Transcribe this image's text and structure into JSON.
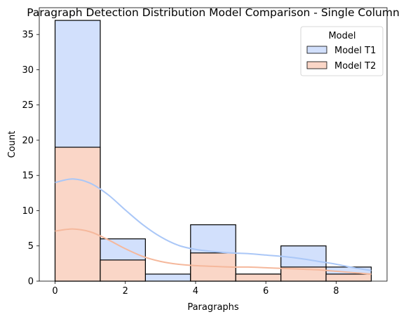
{
  "chart_data": {
    "type": "histogram",
    "title": "Paragraph Detection Distribution Model Comparison - Single Column",
    "xlabel": "Paragraphs",
    "ylabel": "Count",
    "xlim": [
      -0.45,
      9.45
    ],
    "ylim": [
      0,
      38.8
    ],
    "xticks": [
      0,
      2,
      4,
      6,
      8
    ],
    "yticks": [
      0,
      5,
      10,
      15,
      20,
      25,
      30,
      35
    ],
    "bin_edges": [
      0,
      1.286,
      2.571,
      3.857,
      5.143,
      6.429,
      7.714,
      9
    ],
    "grid": false,
    "legend": {
      "title": "Model",
      "position": "top-right"
    },
    "series": [
      {
        "name": "Model T1",
        "counts": [
          37,
          6,
          1,
          8,
          1,
          5,
          2
        ],
        "fill": "#d2e0fc",
        "kde_color": "#aac7f7",
        "kde": [
          [
            0,
            14.0
          ],
          [
            0.5,
            14.5
          ],
          [
            1,
            13.9
          ],
          [
            1.5,
            12.3
          ],
          [
            2,
            10.1
          ],
          [
            2.5,
            8.0
          ],
          [
            3,
            6.3
          ],
          [
            3.5,
            5.1
          ],
          [
            4,
            4.5
          ],
          [
            4.5,
            4.2
          ],
          [
            5,
            4.0
          ],
          [
            5.5,
            3.9
          ],
          [
            6,
            3.7
          ],
          [
            6.5,
            3.5
          ],
          [
            7,
            3.2
          ],
          [
            7.5,
            2.8
          ],
          [
            8,
            2.4
          ],
          [
            8.5,
            1.9
          ],
          [
            9,
            1.5
          ]
        ]
      },
      {
        "name": "Model T2",
        "counts": [
          19,
          3,
          0,
          4,
          1,
          2,
          1
        ],
        "fill": "#fad6c7",
        "kde_color": "#f5b89c",
        "kde": [
          [
            0,
            7.1
          ],
          [
            0.5,
            7.4
          ],
          [
            1,
            7.0
          ],
          [
            1.5,
            5.9
          ],
          [
            2,
            4.6
          ],
          [
            2.5,
            3.5
          ],
          [
            3,
            2.8
          ],
          [
            3.5,
            2.4
          ],
          [
            4,
            2.2
          ],
          [
            4.5,
            2.1
          ],
          [
            5,
            2.0
          ],
          [
            5.5,
            2.0
          ],
          [
            6,
            1.9
          ],
          [
            6.5,
            1.8
          ],
          [
            7,
            1.7
          ],
          [
            7.5,
            1.6
          ],
          [
            8,
            1.4
          ],
          [
            8.5,
            1.2
          ],
          [
            9,
            1.0
          ]
        ]
      }
    ]
  }
}
